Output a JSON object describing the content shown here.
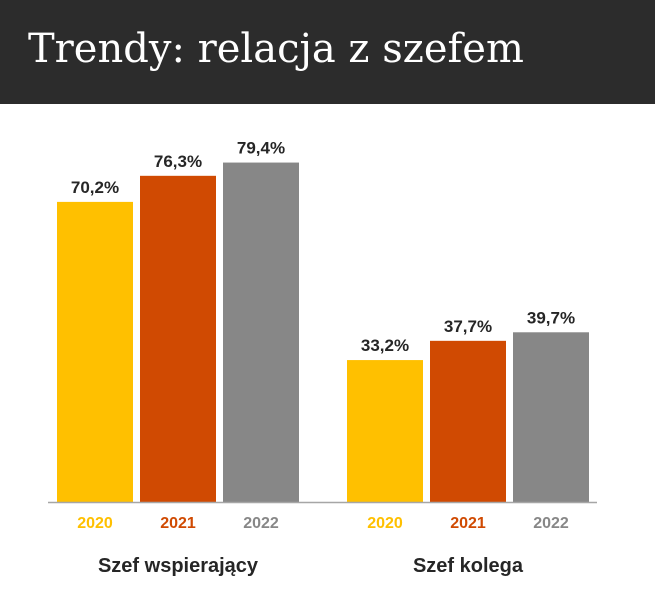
{
  "header": {
    "title": "Trendy: relacja z szefem"
  },
  "colors": {
    "y2020": "#ffc000",
    "y2021": "#d04a02",
    "y2022": "#878787",
    "header_bg": "#2c2c2c",
    "axis": "#a6a6a6"
  },
  "chart_data": {
    "type": "bar",
    "title": "Trendy: relacja z szefem",
    "categories": [
      "Szef wspierający",
      "Szef kolega"
    ],
    "series": [
      {
        "name": "2020",
        "values": [
          70.2,
          33.2
        ],
        "labels": [
          "70,2%",
          "33,2%"
        ]
      },
      {
        "name": "2021",
        "values": [
          76.3,
          37.7
        ],
        "labels": [
          "76,3%",
          "37,7%"
        ]
      },
      {
        "name": "2022",
        "values": [
          79.4,
          39.7
        ],
        "labels": [
          "79,4%",
          "39,7%"
        ]
      }
    ],
    "xlabel": "",
    "ylabel": "",
    "ylim": [
      0,
      100
    ],
    "grid": false
  }
}
